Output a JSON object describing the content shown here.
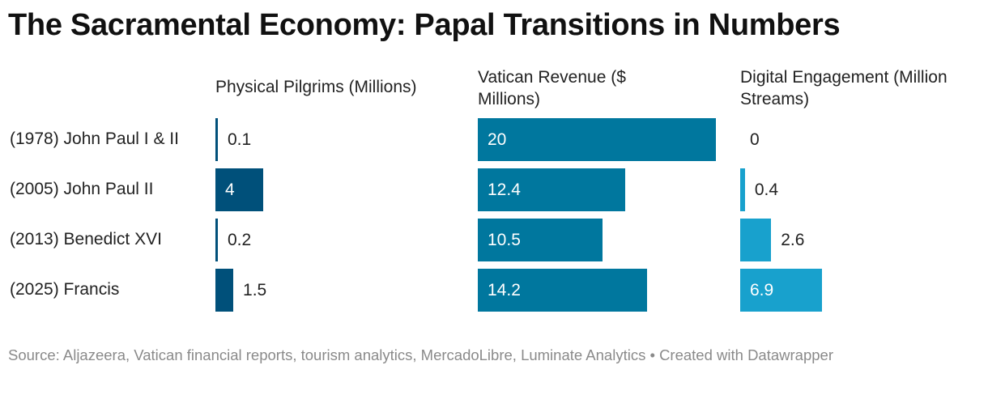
{
  "title": "The Sacramental Economy: Papal Transitions in Numbers",
  "footer": "Source: Aljazeera, Vatican financial reports, tourism analytics, MercadoLibre, Luminate Analytics • Created with Datawrapper",
  "chart_data": {
    "type": "bar",
    "orientation": "horizontal",
    "layout": "small-multiples",
    "categories": [
      "(1978) John Paul I & II",
      "(2005) John Paul II",
      "(2013) Benedict XVI",
      "(2025) Francis"
    ],
    "series": [
      {
        "name": "Physical Pilgrims (Millions)",
        "values": [
          0.1,
          4,
          0.2,
          1.5
        ],
        "xlim": [
          0,
          20
        ],
        "color": "#00507a"
      },
      {
        "name": "Vatican Revenue ($ Millions)",
        "values": [
          20,
          12.4,
          10.5,
          14.2
        ],
        "xlim": [
          0,
          20
        ],
        "color": "#00779e"
      },
      {
        "name": "Digital Engagement (Million Streams)",
        "values": [
          0,
          0.4,
          2.6,
          6.9
        ],
        "xlim": [
          0,
          20
        ],
        "color": "#18a1cd"
      }
    ]
  }
}
